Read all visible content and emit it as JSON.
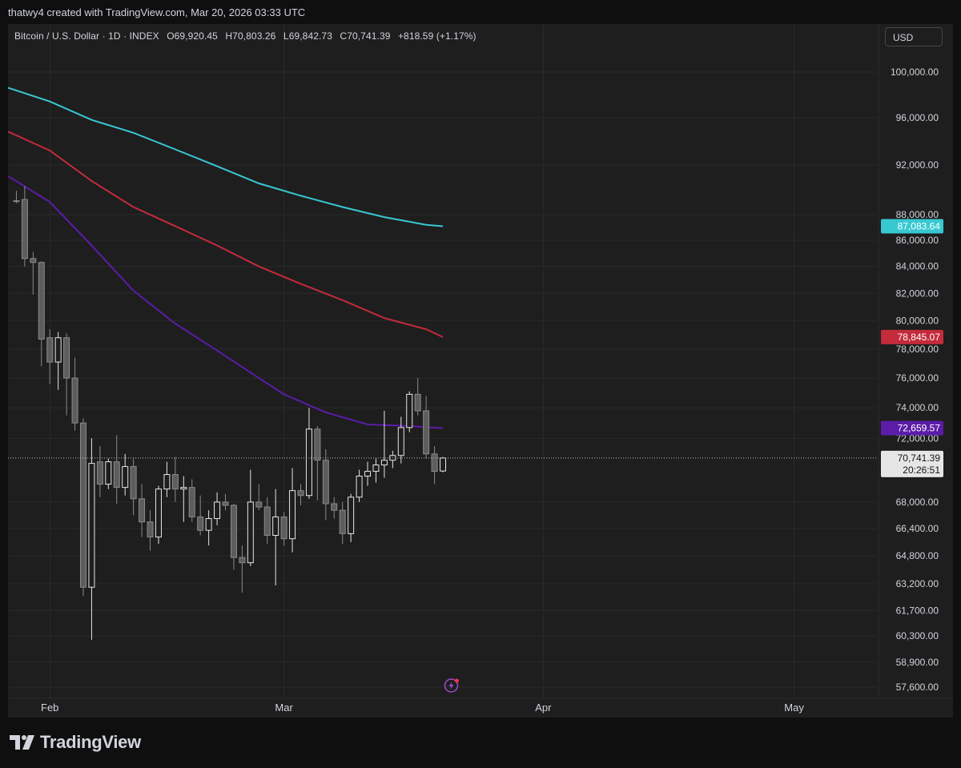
{
  "header": {
    "attribution": "thatwy4 created with TradingView.com, Mar 20, 2026 03:33 UTC"
  },
  "legend": {
    "symbol": "Bitcoin / U.S. Dollar · 1D · INDEX",
    "open_label": "O",
    "open": "69,920.45",
    "high_label": "H",
    "high": "70,803.26",
    "low_label": "L",
    "low": "69,842.73",
    "close_label": "C",
    "close": "70,741.39",
    "change": "+818.59 (+1.17%)"
  },
  "currency_button": "USD",
  "branding": {
    "logo_text": "TradingView"
  },
  "colors": {
    "background": "#1e1e1e",
    "grid": "#2a2a2a",
    "candle_up_fill": "#1e1e1e",
    "candle_up_border": "#e6e6e6",
    "candle_down_fill": "#5d5d5d",
    "candle_down_border": "#8a8a8a",
    "ma_teal": "#38c8d2",
    "ma_red": "#c42b3b",
    "ma_purple": "#5b1ca8",
    "price_label_bg": "#e6e6e6"
  },
  "chart_data": {
    "type": "candlestick",
    "x_axis": {
      "labels": [
        {
          "label": "Feb",
          "date": "2026-02-01"
        },
        {
          "label": "Mar",
          "date": "2026-03-01"
        },
        {
          "label": "Apr",
          "date": "2026-04-01"
        },
        {
          "label": "May",
          "date": "2026-05-01"
        }
      ],
      "range": [
        "2026-01-27",
        "2026-05-20"
      ]
    },
    "y_axis": {
      "scale": "log",
      "ticks": [
        "100,000.00",
        "96,000.00",
        "92,000.00",
        "88,000.00",
        "86,000.00",
        "84,000.00",
        "82,000.00",
        "80,000.00",
        "78,000.00",
        "76,000.00",
        "74,000.00",
        "72,000.00",
        "68,000.00",
        "66,400.00",
        "64,800.00",
        "63,200.00",
        "61,700.00",
        "60,300.00",
        "58,900.00",
        "57,600.00"
      ],
      "tick_values": [
        100000,
        96000,
        92000,
        88000,
        86000,
        84000,
        82000,
        80000,
        78000,
        76000,
        74000,
        72000,
        68000,
        66400,
        64800,
        63200,
        61700,
        60300,
        58900,
        57600
      ]
    },
    "grid": true,
    "candles": [
      {
        "date": "2026-01-28",
        "o": 89100,
        "h": 89900,
        "l": 88900,
        "c": 89050
      },
      {
        "date": "2026-01-29",
        "o": 89200,
        "h": 90300,
        "l": 84000,
        "c": 84600
      },
      {
        "date": "2026-01-30",
        "o": 84600,
        "h": 85100,
        "l": 81900,
        "c": 84300
      },
      {
        "date": "2026-01-31",
        "o": 84300,
        "h": 84400,
        "l": 76800,
        "c": 78700
      },
      {
        "date": "2026-02-01",
        "o": 78800,
        "h": 79400,
        "l": 75600,
        "c": 77100
      },
      {
        "date": "2026-02-02",
        "o": 77100,
        "h": 79200,
        "l": 75200,
        "c": 78800
      },
      {
        "date": "2026-02-03",
        "o": 78800,
        "h": 79100,
        "l": 73500,
        "c": 76000
      },
      {
        "date": "2026-02-04",
        "o": 76000,
        "h": 77400,
        "l": 72500,
        "c": 73000
      },
      {
        "date": "2026-02-05",
        "o": 73000,
        "h": 73300,
        "l": 62500,
        "c": 63000
      },
      {
        "date": "2026-02-06",
        "o": 63000,
        "h": 72000,
        "l": 60100,
        "c": 70400
      },
      {
        "date": "2026-02-07",
        "o": 70500,
        "h": 71500,
        "l": 68300,
        "c": 69100
      },
      {
        "date": "2026-02-08",
        "o": 69100,
        "h": 70700,
        "l": 68800,
        "c": 70500
      },
      {
        "date": "2026-02-09",
        "o": 70500,
        "h": 72200,
        "l": 67900,
        "c": 68900
      },
      {
        "date": "2026-02-10",
        "o": 68900,
        "h": 71000,
        "l": 68400,
        "c": 70200
      },
      {
        "date": "2026-02-11",
        "o": 70200,
        "h": 70700,
        "l": 67200,
        "c": 68200
      },
      {
        "date": "2026-02-12",
        "o": 68200,
        "h": 69100,
        "l": 65900,
        "c": 66800
      },
      {
        "date": "2026-02-13",
        "o": 66800,
        "h": 67500,
        "l": 65100,
        "c": 65900
      },
      {
        "date": "2026-02-14",
        "o": 65900,
        "h": 69000,
        "l": 65500,
        "c": 68800
      },
      {
        "date": "2026-02-15",
        "o": 68800,
        "h": 70500,
        "l": 68300,
        "c": 69700
      },
      {
        "date": "2026-02-16",
        "o": 69700,
        "h": 70800,
        "l": 68000,
        "c": 68800
      },
      {
        "date": "2026-02-17",
        "o": 68800,
        "h": 69600,
        "l": 66800,
        "c": 68900
      },
      {
        "date": "2026-02-18",
        "o": 68900,
        "h": 69400,
        "l": 66800,
        "c": 67100
      },
      {
        "date": "2026-02-19",
        "o": 67100,
        "h": 68400,
        "l": 66000,
        "c": 66300
      },
      {
        "date": "2026-02-20",
        "o": 66300,
        "h": 67500,
        "l": 65400,
        "c": 67000
      },
      {
        "date": "2026-02-21",
        "o": 67000,
        "h": 68600,
        "l": 66600,
        "c": 68000
      },
      {
        "date": "2026-02-22",
        "o": 68000,
        "h": 68500,
        "l": 67500,
        "c": 67800
      },
      {
        "date": "2026-02-23",
        "o": 67800,
        "h": 67900,
        "l": 64000,
        "c": 64700
      },
      {
        "date": "2026-02-24",
        "o": 64700,
        "h": 65400,
        "l": 62700,
        "c": 64400
      },
      {
        "date": "2026-02-25",
        "o": 64400,
        "h": 70000,
        "l": 64200,
        "c": 68000
      },
      {
        "date": "2026-02-26",
        "o": 68000,
        "h": 69100,
        "l": 67500,
        "c": 67700
      },
      {
        "date": "2026-02-27",
        "o": 67700,
        "h": 68300,
        "l": 65500,
        "c": 66000
      },
      {
        "date": "2026-02-28",
        "o": 66000,
        "h": 68800,
        "l": 63100,
        "c": 67100
      },
      {
        "date": "2026-03-01",
        "o": 67100,
        "h": 67400,
        "l": 65400,
        "c": 65800
      },
      {
        "date": "2026-03-02",
        "o": 65800,
        "h": 70100,
        "l": 65000,
        "c": 68700
      },
      {
        "date": "2026-03-03",
        "o": 68700,
        "h": 69100,
        "l": 67800,
        "c": 68400
      },
      {
        "date": "2026-03-04",
        "o": 68400,
        "h": 74000,
        "l": 68200,
        "c": 72600
      },
      {
        "date": "2026-03-05",
        "o": 72600,
        "h": 72800,
        "l": 68100,
        "c": 70600
      },
      {
        "date": "2026-03-06",
        "o": 70600,
        "h": 71300,
        "l": 66900,
        "c": 67900
      },
      {
        "date": "2026-03-07",
        "o": 67900,
        "h": 68300,
        "l": 67000,
        "c": 67500
      },
      {
        "date": "2026-03-08",
        "o": 67500,
        "h": 68000,
        "l": 65500,
        "c": 66100
      },
      {
        "date": "2026-03-09",
        "o": 66100,
        "h": 68500,
        "l": 65600,
        "c": 68300
      },
      {
        "date": "2026-03-10",
        "o": 68300,
        "h": 70000,
        "l": 68000,
        "c": 69600
      },
      {
        "date": "2026-03-11",
        "o": 69600,
        "h": 70500,
        "l": 69000,
        "c": 69900
      },
      {
        "date": "2026-03-12",
        "o": 69900,
        "h": 70700,
        "l": 69200,
        "c": 70300
      },
      {
        "date": "2026-03-13",
        "o": 70300,
        "h": 73800,
        "l": 69500,
        "c": 70600
      },
      {
        "date": "2026-03-14",
        "o": 70600,
        "h": 71200,
        "l": 70100,
        "c": 70900
      },
      {
        "date": "2026-03-15",
        "o": 70900,
        "h": 73400,
        "l": 70400,
        "c": 72700
      },
      {
        "date": "2026-03-16",
        "o": 72700,
        "h": 75100,
        "l": 72400,
        "c": 74900
      },
      {
        "date": "2026-03-17",
        "o": 74900,
        "h": 76000,
        "l": 73500,
        "c": 73800
      },
      {
        "date": "2026-03-18",
        "o": 73800,
        "h": 74800,
        "l": 70700,
        "c": 71000
      },
      {
        "date": "2026-03-19",
        "o": 71000,
        "h": 71500,
        "l": 69100,
        "c": 69900
      },
      {
        "date": "2026-03-20",
        "o": 69920.45,
        "h": 70803.26,
        "l": 69842.73,
        "c": 70741.39
      }
    ],
    "moving_averages": [
      {
        "color": "#38c8d2",
        "last_value_label": "87,083.64",
        "points": [
          [
            "2026-01-27",
            98600
          ],
          [
            "2026-02-01",
            97400
          ],
          [
            "2026-02-06",
            95800
          ],
          [
            "2026-02-11",
            94700
          ],
          [
            "2026-02-16",
            93300
          ],
          [
            "2026-02-21",
            91900
          ],
          [
            "2026-02-26",
            90500
          ],
          [
            "2026-03-03",
            89500
          ],
          [
            "2026-03-08",
            88600
          ],
          [
            "2026-03-13",
            87800
          ],
          [
            "2026-03-18",
            87200
          ],
          [
            "2026-03-20",
            87083.64
          ]
        ]
      },
      {
        "color": "#c42b3b",
        "last_value_label": "78,845.07",
        "points": [
          [
            "2026-01-27",
            94800
          ],
          [
            "2026-02-01",
            93200
          ],
          [
            "2026-02-06",
            90700
          ],
          [
            "2026-02-11",
            88600
          ],
          [
            "2026-02-16",
            87100
          ],
          [
            "2026-02-21",
            85600
          ],
          [
            "2026-02-26",
            84000
          ],
          [
            "2026-03-03",
            82700
          ],
          [
            "2026-03-08",
            81500
          ],
          [
            "2026-03-13",
            80200
          ],
          [
            "2026-03-18",
            79400
          ],
          [
            "2026-03-20",
            78845.07
          ]
        ]
      },
      {
        "color": "#5b1ca8",
        "last_value_label": "72,659.57",
        "points": [
          [
            "2026-01-27",
            91100
          ],
          [
            "2026-02-01",
            89000
          ],
          [
            "2026-02-06",
            85600
          ],
          [
            "2026-02-11",
            82200
          ],
          [
            "2026-02-16",
            79800
          ],
          [
            "2026-02-21",
            77900
          ],
          [
            "2026-02-26",
            76000
          ],
          [
            "2026-03-01",
            74900
          ],
          [
            "2026-03-06",
            73700
          ],
          [
            "2026-03-11",
            72900
          ],
          [
            "2026-03-16",
            72800
          ],
          [
            "2026-03-20",
            72659.57
          ]
        ]
      }
    ],
    "current_price": {
      "label": "70,741.39",
      "value": 70741.39,
      "countdown": "20:26:51"
    }
  }
}
